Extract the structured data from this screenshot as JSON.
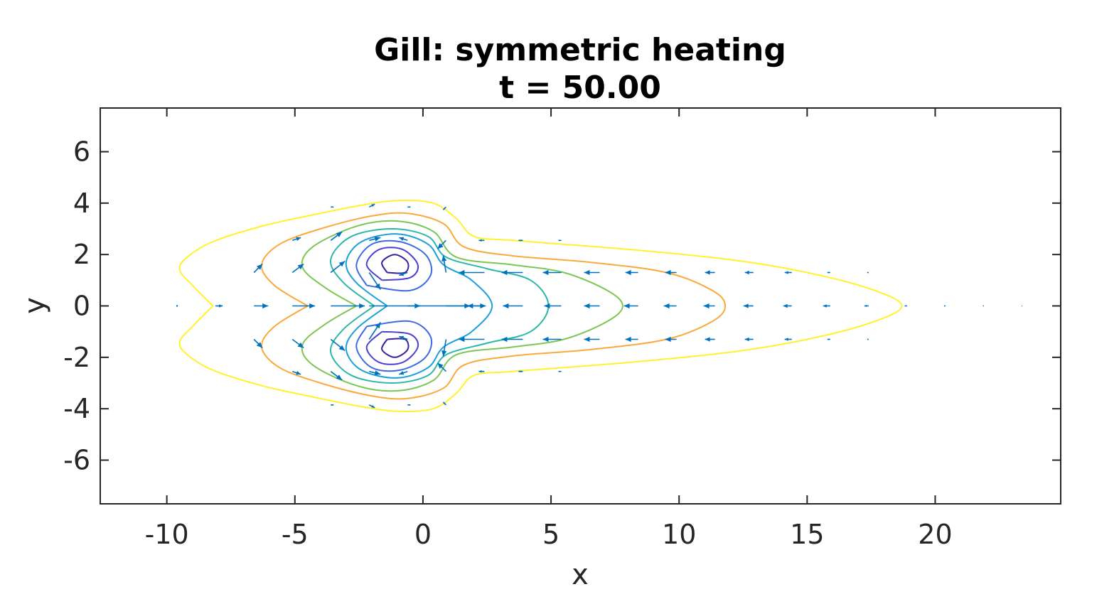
{
  "chart_data": {
    "type": "contour+quiver",
    "title": "Gill: symmetric heating",
    "subtitle": "t = 50.00",
    "xlabel": "x",
    "ylabel": "y",
    "xlim": [
      -12.6,
      24.9
    ],
    "ylim": [
      -7.7,
      7.7
    ],
    "xticks": [
      -10,
      -5,
      0,
      5,
      10,
      15,
      20
    ],
    "xtick_labels": [
      "-10",
      "-5",
      "0",
      "5",
      "10",
      "15",
      "20"
    ],
    "yticks": [
      -6,
      -4,
      -2,
      0,
      2,
      4,
      6
    ],
    "ytick_labels": [
      "-6",
      "-4",
      "-2",
      "0",
      "2",
      "4",
      "6"
    ],
    "grid": false,
    "legend": "none",
    "arrow_color": "#0072BD",
    "contours": [
      {
        "color": "#FFF22E",
        "points": [
          [
            -8.2,
            0
          ],
          [
            -9.0,
            0.8
          ],
          [
            -9.5,
            1.4
          ],
          [
            -9.2,
            1.9
          ],
          [
            -8.2,
            2.5
          ],
          [
            -6.3,
            3.1
          ],
          [
            -4.5,
            3.5
          ],
          [
            -2.5,
            3.9
          ],
          [
            -1.0,
            4.1
          ],
          [
            0.4,
            4.0
          ],
          [
            1.3,
            3.4
          ],
          [
            2.0,
            2.7
          ],
          [
            3.5,
            2.55
          ],
          [
            8.0,
            2.2
          ],
          [
            12.0,
            1.8
          ],
          [
            15.0,
            1.3
          ],
          [
            17.5,
            0.65
          ],
          [
            18.7,
            0
          ],
          [
            17.5,
            -0.65
          ],
          [
            15.0,
            -1.3
          ],
          [
            12.0,
            -1.8
          ],
          [
            8.0,
            -2.2
          ],
          [
            3.5,
            -2.55
          ],
          [
            2.0,
            -2.7
          ],
          [
            1.3,
            -3.4
          ],
          [
            0.4,
            -4.0
          ],
          [
            -1.0,
            -4.1
          ],
          [
            -2.5,
            -3.9
          ],
          [
            -4.5,
            -3.5
          ],
          [
            -6.3,
            -3.1
          ],
          [
            -8.2,
            -2.5
          ],
          [
            -9.2,
            -1.9
          ],
          [
            -9.5,
            -1.4
          ],
          [
            -9.0,
            -0.8
          ],
          [
            -8.2,
            0
          ]
        ]
      },
      {
        "color": "#FAA93A",
        "points": [
          [
            -4.5,
            0
          ],
          [
            -5.8,
            0.8
          ],
          [
            -6.3,
            1.6
          ],
          [
            -5.6,
            2.4
          ],
          [
            -4.0,
            3.0
          ],
          [
            -2.0,
            3.5
          ],
          [
            -0.6,
            3.6
          ],
          [
            0.8,
            3.2
          ],
          [
            1.6,
            2.3
          ],
          [
            3.5,
            1.95
          ],
          [
            6.5,
            1.7
          ],
          [
            9.5,
            1.3
          ],
          [
            11.3,
            0.6
          ],
          [
            11.8,
            0
          ],
          [
            11.3,
            -0.6
          ],
          [
            9.5,
            -1.3
          ],
          [
            6.5,
            -1.7
          ],
          [
            3.5,
            -1.95
          ],
          [
            1.6,
            -2.3
          ],
          [
            0.8,
            -3.2
          ],
          [
            -0.6,
            -3.6
          ],
          [
            -2.0,
            -3.5
          ],
          [
            -4.0,
            -3.0
          ],
          [
            -5.6,
            -2.4
          ],
          [
            -6.3,
            -1.6
          ],
          [
            -5.8,
            -0.8
          ],
          [
            -4.5,
            0
          ]
        ]
      },
      {
        "color": "#7CC654",
        "points": [
          [
            -2.6,
            0
          ],
          [
            -3.8,
            0.7
          ],
          [
            -4.7,
            1.5
          ],
          [
            -4.3,
            2.3
          ],
          [
            -2.6,
            3.1
          ],
          [
            -1.0,
            3.3
          ],
          [
            0.4,
            2.9
          ],
          [
            1.3,
            1.9
          ],
          [
            3.5,
            1.6
          ],
          [
            5.5,
            1.3
          ],
          [
            7.2,
            0.6
          ],
          [
            7.8,
            0
          ],
          [
            7.2,
            -0.6
          ],
          [
            5.5,
            -1.3
          ],
          [
            3.5,
            -1.6
          ],
          [
            1.3,
            -1.9
          ],
          [
            0.4,
            -2.9
          ],
          [
            -1.0,
            -3.3
          ],
          [
            -2.6,
            -3.1
          ],
          [
            -4.3,
            -2.3
          ],
          [
            -4.7,
            -1.5
          ],
          [
            -3.8,
            -0.7
          ],
          [
            -2.6,
            0
          ]
        ]
      },
      {
        "color": "#2CB7A8",
        "points": [
          [
            -1.9,
            0
          ],
          [
            -3.1,
            0.9
          ],
          [
            -3.6,
            1.8
          ],
          [
            -2.8,
            2.7
          ],
          [
            -1.2,
            3.0
          ],
          [
            0.2,
            2.7
          ],
          [
            0.9,
            1.9
          ],
          [
            2.5,
            1.45
          ],
          [
            4.2,
            1.0
          ],
          [
            4.9,
            0
          ],
          [
            4.2,
            -1.0
          ],
          [
            2.5,
            -1.45
          ],
          [
            0.9,
            -1.9
          ],
          [
            0.2,
            -2.7
          ],
          [
            -1.2,
            -3.0
          ],
          [
            -2.8,
            -2.7
          ],
          [
            -3.6,
            -1.8
          ],
          [
            -3.1,
            -0.9
          ],
          [
            -1.9,
            0
          ]
        ]
      },
      {
        "color": "#1A9FDB",
        "points": [
          [
            -1.4,
            0
          ],
          [
            -2.6,
            0.9
          ],
          [
            -3.0,
            1.7
          ],
          [
            -2.4,
            2.5
          ],
          [
            -1.0,
            2.8
          ],
          [
            0.2,
            2.4
          ],
          [
            0.8,
            1.6
          ],
          [
            1.9,
            1.0
          ],
          [
            2.7,
            0
          ],
          [
            1.9,
            -1.0
          ],
          [
            0.8,
            -1.6
          ],
          [
            0.2,
            -2.4
          ],
          [
            -1.0,
            -2.8
          ],
          [
            -2.4,
            -2.5
          ],
          [
            -3.0,
            -1.7
          ],
          [
            -2.6,
            -0.9
          ],
          [
            -1.4,
            0
          ]
        ]
      },
      {
        "color": "#3D6BE5",
        "points": [
          [
            -2.2,
            0.8
          ],
          [
            -2.6,
            1.6
          ],
          [
            -2.0,
            2.4
          ],
          [
            -0.9,
            2.5
          ],
          [
            0.1,
            2.0
          ],
          [
            0.3,
            1.2
          ],
          [
            -0.5,
            0.6
          ],
          [
            -2.2,
            0.8
          ]
        ]
      },
      {
        "color": "#3D6BE5",
        "points": [
          [
            -2.2,
            -0.8
          ],
          [
            -2.6,
            -1.6
          ],
          [
            -2.0,
            -2.4
          ],
          [
            -0.9,
            -2.5
          ],
          [
            0.1,
            -2.0
          ],
          [
            0.3,
            -1.2
          ],
          [
            -0.5,
            -0.6
          ],
          [
            -2.2,
            -0.8
          ]
        ]
      },
      {
        "color": "#4A3FD6",
        "points": [
          [
            -1.6,
            1.0
          ],
          [
            -2.2,
            1.6
          ],
          [
            -1.7,
            2.2
          ],
          [
            -0.8,
            2.2
          ],
          [
            -0.2,
            1.6
          ],
          [
            -0.5,
            1.1
          ],
          [
            -1.6,
            1.0
          ]
        ]
      },
      {
        "color": "#4A3FD6",
        "points": [
          [
            -1.6,
            -1.0
          ],
          [
            -2.2,
            -1.6
          ],
          [
            -1.7,
            -2.2
          ],
          [
            -0.8,
            -2.2
          ],
          [
            -0.2,
            -1.6
          ],
          [
            -0.5,
            -1.1
          ],
          [
            -1.6,
            -1.0
          ]
        ]
      },
      {
        "color": "#3A1F9E",
        "points": [
          [
            -1.4,
            1.3
          ],
          [
            -1.6,
            1.7
          ],
          [
            -1.1,
            2.0
          ],
          [
            -0.6,
            1.7
          ],
          [
            -0.7,
            1.3
          ],
          [
            -1.4,
            1.3
          ]
        ]
      },
      {
        "color": "#3A1F9E",
        "points": [
          [
            -1.4,
            -1.3
          ],
          [
            -1.6,
            -1.7
          ],
          [
            -1.1,
            -2.0
          ],
          [
            -0.6,
            -1.7
          ],
          [
            -0.7,
            -1.3
          ],
          [
            -1.4,
            -1.3
          ]
        ]
      }
    ],
    "vectors": [
      {
        "x": -9.6,
        "y": 0,
        "u": 0.0,
        "v": 0.0
      },
      {
        "x": -8.1,
        "y": 0,
        "u": 0.25,
        "v": 0.0
      },
      {
        "x": -6.6,
        "y": 0,
        "u": 0.5,
        "v": 0.0
      },
      {
        "x": -5.1,
        "y": 0,
        "u": 0.8,
        "v": 0.0
      },
      {
        "x": -3.6,
        "y": 0,
        "u": 1.2,
        "v": 0.0
      },
      {
        "x": -2.1,
        "y": 0,
        "u": 1.8,
        "v": 0.0
      },
      {
        "x": -0.6,
        "y": 0,
        "u": 2.2,
        "v": 0.0
      },
      {
        "x": 0.9,
        "y": 0,
        "u": 1.4,
        "v": 0.0
      },
      {
        "x": 2.4,
        "y": 0,
        "u": -0.6,
        "v": 0.0
      },
      {
        "x": 3.9,
        "y": 0,
        "u": -0.7,
        "v": 0.0
      },
      {
        "x": 5.4,
        "y": 0,
        "u": -0.6,
        "v": 0.0
      },
      {
        "x": 6.9,
        "y": 0,
        "u": -0.55,
        "v": 0.0
      },
      {
        "x": 8.4,
        "y": 0,
        "u": -0.5,
        "v": 0.0
      },
      {
        "x": 9.9,
        "y": 0,
        "u": -0.45,
        "v": 0.0
      },
      {
        "x": 11.4,
        "y": 0,
        "u": -0.4,
        "v": 0.0
      },
      {
        "x": 12.9,
        "y": 0,
        "u": -0.35,
        "v": 0.0
      },
      {
        "x": 14.4,
        "y": 0,
        "u": -0.3,
        "v": 0.0
      },
      {
        "x": 15.9,
        "y": 0,
        "u": -0.25,
        "v": 0.0
      },
      {
        "x": 17.4,
        "y": 0,
        "u": -0.15,
        "v": 0.0
      },
      {
        "x": 18.9,
        "y": 0,
        "u": -0.08,
        "v": 0.0
      },
      {
        "x": 20.4,
        "y": 0,
        "u": -0.05,
        "v": 0.0
      },
      {
        "x": 21.9,
        "y": 0,
        "u": -0.03,
        "v": 0.0
      },
      {
        "x": 23.4,
        "y": 0,
        "u": -0.02,
        "v": 0.0
      },
      {
        "x": -6.6,
        "y": 1.3,
        "u": 0.3,
        "v": 0.3
      },
      {
        "x": -5.1,
        "y": 1.3,
        "u": 0.4,
        "v": 0.3
      },
      {
        "x": -3.6,
        "y": 1.3,
        "u": 0.5,
        "v": 0.4
      },
      {
        "x": -2.1,
        "y": 1.3,
        "u": 0.4,
        "v": -0.6
      },
      {
        "x": -0.6,
        "y": 1.3,
        "u": -0.3,
        "v": -0.1
      },
      {
        "x": 0.9,
        "y": 1.3,
        "u": -0.1,
        "v": 0.6
      },
      {
        "x": 2.4,
        "y": 1.3,
        "u": -0.9,
        "v": 0.0
      },
      {
        "x": 3.9,
        "y": 1.3,
        "u": -0.75,
        "v": 0.0
      },
      {
        "x": 5.4,
        "y": 1.3,
        "u": -0.65,
        "v": 0.0
      },
      {
        "x": 6.9,
        "y": 1.3,
        "u": -0.55,
        "v": 0.0
      },
      {
        "x": 8.4,
        "y": 1.3,
        "u": -0.45,
        "v": 0.0
      },
      {
        "x": 9.9,
        "y": 1.3,
        "u": -0.4,
        "v": 0.0
      },
      {
        "x": 11.4,
        "y": 1.3,
        "u": -0.35,
        "v": 0.0
      },
      {
        "x": 12.9,
        "y": 1.3,
        "u": -0.3,
        "v": 0.0
      },
      {
        "x": 14.4,
        "y": 1.3,
        "u": -0.25,
        "v": 0.0
      },
      {
        "x": 15.9,
        "y": 1.3,
        "u": -0.1,
        "v": 0.0
      },
      {
        "x": 17.4,
        "y": 1.3,
        "u": -0.05,
        "v": 0.0
      },
      {
        "x": -6.6,
        "y": -1.3,
        "u": 0.3,
        "v": -0.3
      },
      {
        "x": -5.1,
        "y": -1.3,
        "u": 0.4,
        "v": -0.3
      },
      {
        "x": -3.6,
        "y": -1.3,
        "u": 0.5,
        "v": -0.4
      },
      {
        "x": -2.1,
        "y": -1.3,
        "u": 0.4,
        "v": 0.6
      },
      {
        "x": -0.6,
        "y": -1.3,
        "u": -0.3,
        "v": 0.1
      },
      {
        "x": 0.9,
        "y": -1.3,
        "u": -0.1,
        "v": -0.6
      },
      {
        "x": 2.4,
        "y": -1.3,
        "u": -0.9,
        "v": 0.0
      },
      {
        "x": 3.9,
        "y": -1.3,
        "u": -0.75,
        "v": 0.0
      },
      {
        "x": 5.4,
        "y": -1.3,
        "u": -0.65,
        "v": 0.0
      },
      {
        "x": 6.9,
        "y": -1.3,
        "u": -0.55,
        "v": 0.0
      },
      {
        "x": 8.4,
        "y": -1.3,
        "u": -0.45,
        "v": 0.0
      },
      {
        "x": 9.9,
        "y": -1.3,
        "u": -0.4,
        "v": 0.0
      },
      {
        "x": 11.4,
        "y": -1.3,
        "u": -0.35,
        "v": 0.0
      },
      {
        "x": 12.9,
        "y": -1.3,
        "u": -0.3,
        "v": 0.0
      },
      {
        "x": 14.4,
        "y": -1.3,
        "u": -0.25,
        "v": 0.0
      },
      {
        "x": 15.9,
        "y": -1.3,
        "u": -0.1,
        "v": 0.0
      },
      {
        "x": 17.4,
        "y": -1.3,
        "u": -0.05,
        "v": 0.0
      },
      {
        "x": -5.1,
        "y": 2.55,
        "u": 0.3,
        "v": 0.1
      },
      {
        "x": -3.6,
        "y": 2.55,
        "u": 0.4,
        "v": 0.3
      },
      {
        "x": -2.1,
        "y": 2.55,
        "u": 0.4,
        "v": 0.1
      },
      {
        "x": -0.6,
        "y": 2.55,
        "u": -0.3,
        "v": 0.1
      },
      {
        "x": 0.9,
        "y": 2.55,
        "u": -0.3,
        "v": -0.3
      },
      {
        "x": 2.4,
        "y": 2.55,
        "u": -0.2,
        "v": 0.0
      },
      {
        "x": 3.9,
        "y": 2.55,
        "u": -0.15,
        "v": 0.0
      },
      {
        "x": 5.4,
        "y": 2.55,
        "u": -0.1,
        "v": 0.0
      },
      {
        "x": -5.1,
        "y": -2.55,
        "u": 0.3,
        "v": -0.1
      },
      {
        "x": -3.6,
        "y": -2.55,
        "u": 0.4,
        "v": -0.3
      },
      {
        "x": -2.1,
        "y": -2.55,
        "u": 0.4,
        "v": -0.1
      },
      {
        "x": -0.6,
        "y": -2.55,
        "u": -0.3,
        "v": -0.1
      },
      {
        "x": 0.9,
        "y": -2.55,
        "u": -0.3,
        "v": 0.3
      },
      {
        "x": 2.4,
        "y": -2.55,
        "u": -0.2,
        "v": 0.0
      },
      {
        "x": 3.9,
        "y": -2.55,
        "u": -0.15,
        "v": 0.0
      },
      {
        "x": 5.4,
        "y": -2.55,
        "u": -0.1,
        "v": 0.0
      },
      {
        "x": -3.6,
        "y": 3.85,
        "u": 0.1,
        "v": 0.0
      },
      {
        "x": -2.1,
        "y": 3.85,
        "u": 0.2,
        "v": 0.1
      },
      {
        "x": -0.6,
        "y": 3.85,
        "u": 0.1,
        "v": 0.0
      },
      {
        "x": 0.9,
        "y": 3.85,
        "u": -0.1,
        "v": -0.1
      },
      {
        "x": -3.6,
        "y": -3.85,
        "u": 0.1,
        "v": 0.0
      },
      {
        "x": -2.1,
        "y": -3.85,
        "u": 0.2,
        "v": -0.1
      },
      {
        "x": -0.6,
        "y": -3.85,
        "u": 0.1,
        "v": 0.0
      },
      {
        "x": 0.9,
        "y": -3.85,
        "u": -0.1,
        "v": 0.1
      }
    ]
  }
}
